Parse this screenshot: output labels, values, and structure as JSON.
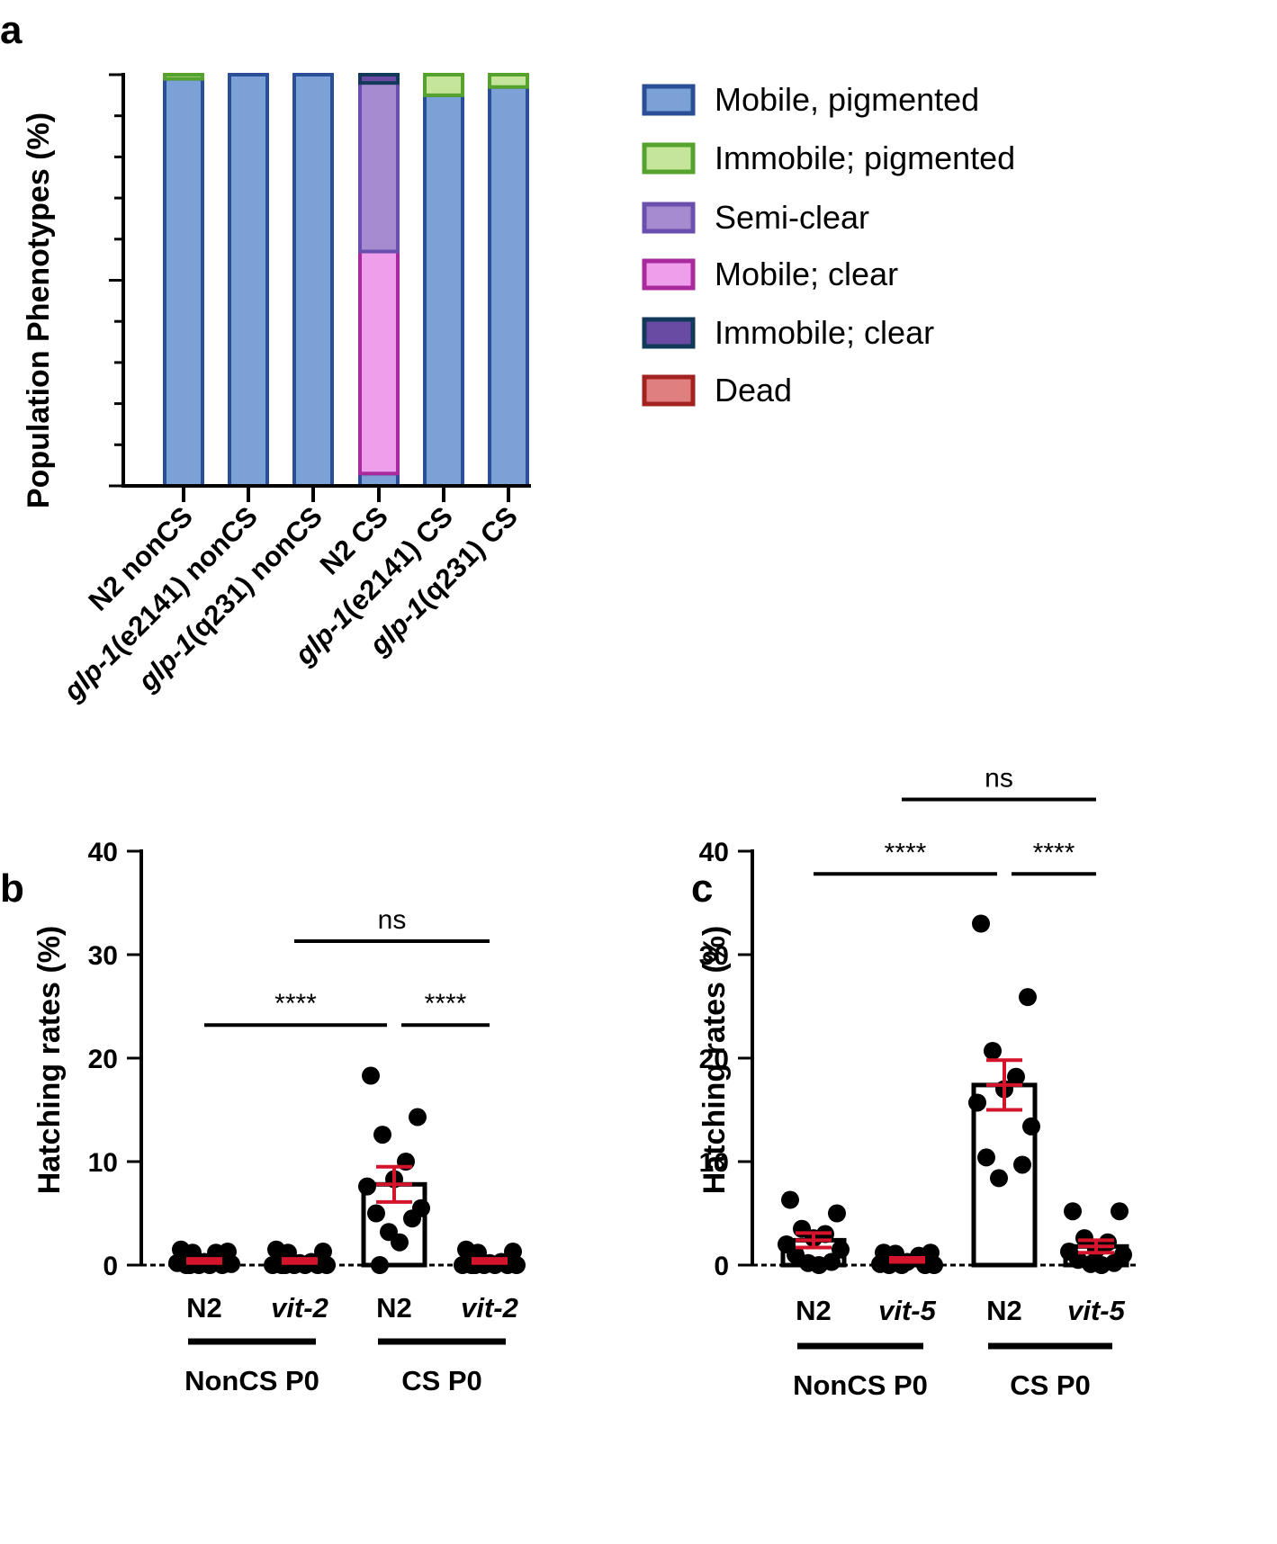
{
  "chart_data": [
    {
      "panel": "a",
      "type": "bar",
      "stacked": true,
      "ylabel": "Population Phenotypes (%)",
      "ylim": [
        0,
        100
      ],
      "yticks": [
        "0",
        "50",
        "100"
      ],
      "categories": [
        {
          "label": "N2  nonCS"
        },
        {
          "label": "(e2141) nonCS",
          "gene": "glp-1"
        },
        {
          "label": "(q231) nonCS",
          "gene": "glp-1"
        },
        {
          "label": "N2 CS"
        },
        {
          "label": "(e2141) CS",
          "gene": "glp-1"
        },
        {
          "label": "(q231)  CS",
          "gene": "glp-1"
        }
      ],
      "series": [
        {
          "name": "Mobile, pigmented",
          "fill": "#7ba1d6",
          "stroke": "#2a4f96",
          "values": [
            99,
            100,
            100,
            3,
            95,
            97
          ]
        },
        {
          "name": "Immobile; pigmented",
          "fill": "#c4e59a",
          "stroke": "#55a22f",
          "values": [
            1,
            0,
            0,
            0,
            5,
            3
          ]
        },
        {
          "name": "Semi-clear",
          "fill": "#a78bd0",
          "stroke": "#6a4fae",
          "values": [
            0,
            0,
            0,
            41,
            0,
            0
          ]
        },
        {
          "name": "Mobile; clear",
          "fill": "#ee9eea",
          "stroke": "#a82a9c",
          "values": [
            0,
            0,
            0,
            54,
            0,
            0
          ]
        },
        {
          "name": "Immobile; clear",
          "fill": "#6a4ba3",
          "stroke": "#13395a",
          "values": [
            0,
            0,
            0,
            2,
            0,
            0
          ]
        },
        {
          "name": "Dead",
          "fill": "#e07f7f",
          "stroke": "#a32121",
          "values": [
            0,
            0,
            0,
            0,
            0,
            0
          ]
        }
      ],
      "stack_order": [
        0,
        3,
        2,
        4,
        1,
        5
      ]
    },
    {
      "panel": "b",
      "type": "bar",
      "ylabel": "Hatching rates (%)",
      "ylim": [
        0,
        40
      ],
      "yticks": [
        "0",
        "10",
        "20",
        "30",
        "40"
      ],
      "groups": [
        {
          "label": "N2",
          "italic": false,
          "mean": 0.4,
          "sem": 0.2,
          "points": [
            1.5,
            1.3,
            1.2,
            1.2,
            0.3,
            0.2,
            0.1,
            0,
            0,
            0,
            0,
            0
          ]
        },
        {
          "label": "vit-2",
          "italic": true,
          "mean": 0.4,
          "sem": 0.2,
          "points": [
            1.5,
            1.3,
            1.2,
            0.3,
            0.2,
            0,
            0,
            0,
            0,
            0,
            0,
            0
          ]
        },
        {
          "label": "N2",
          "italic": false,
          "mean": 7.8,
          "sem": 1.7,
          "points": [
            18.3,
            14.3,
            12.6,
            10.0,
            8.3,
            7.6,
            5.5,
            5.0,
            4.5,
            3.2,
            2.2,
            0
          ]
        },
        {
          "label": "vit-2",
          "italic": true,
          "mean": 0.4,
          "sem": 0.2,
          "points": [
            1.5,
            1.3,
            1.2,
            0.3,
            0.2,
            0,
            0,
            0,
            0,
            0,
            0,
            0
          ]
        }
      ],
      "conditions": [
        "NonCS P0",
        "CS P0"
      ],
      "comparisons": [
        {
          "from": 0,
          "to": 2,
          "label": "****",
          "level": 23.2
        },
        {
          "from": 2,
          "to": 3,
          "label": "****",
          "level": 23.2
        },
        {
          "from": 1,
          "to": 3,
          "label": "ns",
          "level": 31.3
        }
      ]
    },
    {
      "panel": "c",
      "type": "bar",
      "ylabel": "Hatching rates (%)",
      "ylim": [
        0,
        40
      ],
      "yticks": [
        "0",
        "10",
        "20",
        "30",
        "40"
      ],
      "groups": [
        {
          "label": "N2",
          "italic": false,
          "mean": 2.4,
          "sem": 0.7,
          "points": [
            6.3,
            5.0,
            3.5,
            3.0,
            2.6,
            2.0,
            1.5,
            1.0,
            0.3,
            0.2,
            0
          ]
        },
        {
          "label": "vit-5",
          "italic": true,
          "mean": 0.5,
          "sem": 0.2,
          "points": [
            1.2,
            1.2,
            1.1,
            0.9,
            0.3,
            0.1,
            0,
            0,
            0,
            0
          ]
        },
        {
          "label": "N2",
          "italic": false,
          "mean": 17.4,
          "sem": 2.4,
          "points": [
            33.0,
            25.9,
            20.7,
            18.2,
            17.0,
            15.7,
            13.4,
            10.4,
            9.7,
            8.4
          ]
        },
        {
          "label": "vit-5",
          "italic": true,
          "mean": 1.8,
          "sem": 0.6,
          "points": [
            5.2,
            5.2,
            2.6,
            2.2,
            1.5,
            1.3,
            1.0,
            0.5,
            0.2,
            0.1,
            0
          ]
        }
      ],
      "conditions": [
        "NonCS P0",
        "CS P0"
      ],
      "comparisons": [
        {
          "from": 0,
          "to": 2,
          "label": "****",
          "level": 37.8
        },
        {
          "from": 2,
          "to": 3,
          "label": "****",
          "level": 37.8
        },
        {
          "from": 1,
          "to": 3,
          "label": "ns",
          "level": 45.0
        }
      ]
    }
  ]
}
